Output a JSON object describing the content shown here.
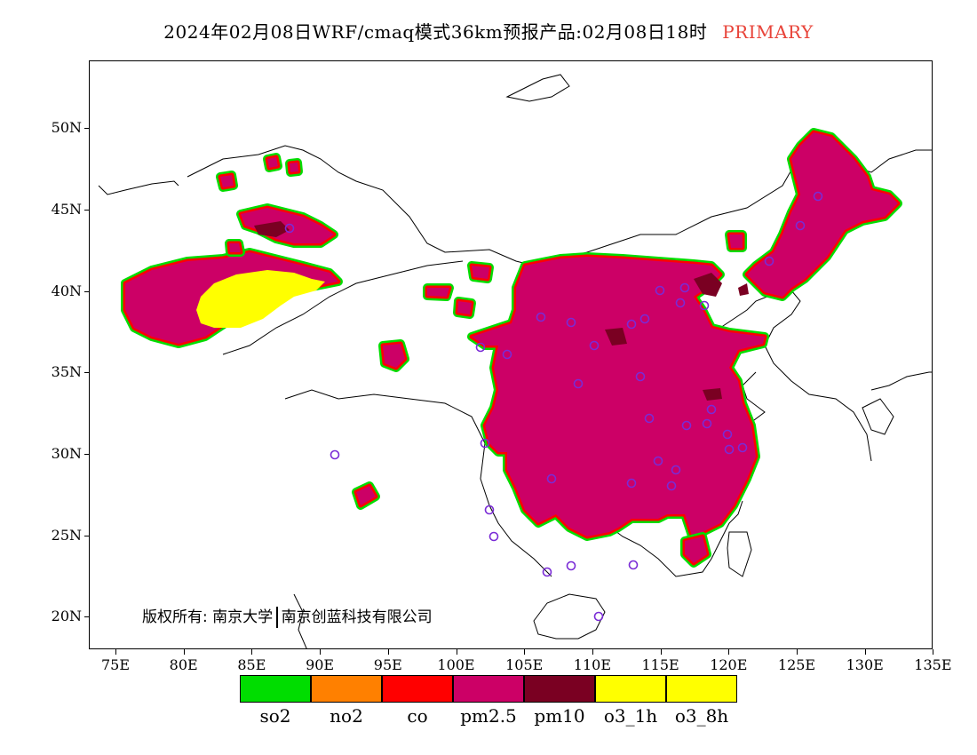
{
  "title": {
    "main": "2024年02月08日WRF/cmaq模式36km预报产品:02月08日18时",
    "tag": "PRIMARY",
    "tag_color": "#e8443a"
  },
  "axes": {
    "x_labels": [
      "75E",
      "80E",
      "85E",
      "90E",
      "95E",
      "100E",
      "105E",
      "110E",
      "115E",
      "120E",
      "125E",
      "130E",
      "135E"
    ],
    "y_labels": [
      "50N",
      "45N",
      "40N",
      "35N",
      "30N",
      "25N",
      "20N"
    ]
  },
  "legend": [
    {
      "label": "so2",
      "color": "#00dd00"
    },
    {
      "label": "no2",
      "color": "#ff8000"
    },
    {
      "label": "co",
      "color": "#ff0000"
    },
    {
      "label": "pm2.5",
      "color": "#cc0066"
    },
    {
      "label": "pm10",
      "color": "#7a0022"
    },
    {
      "label": "o3_1h",
      "color": "#ffff00"
    },
    {
      "label": "o3_8h",
      "color": "#ffff00"
    }
  ],
  "copyright": {
    "left": "版权所有: 南京大学",
    "right": "南京创蓝科技有限公司"
  },
  "colors": {
    "pm25": "#cc0066",
    "pm10": "#7a0022",
    "o3": "#ffff00",
    "co": "#ff0000",
    "no2": "#ff8000",
    "so2": "#00dd00",
    "station": "#7a2bd6"
  }
}
